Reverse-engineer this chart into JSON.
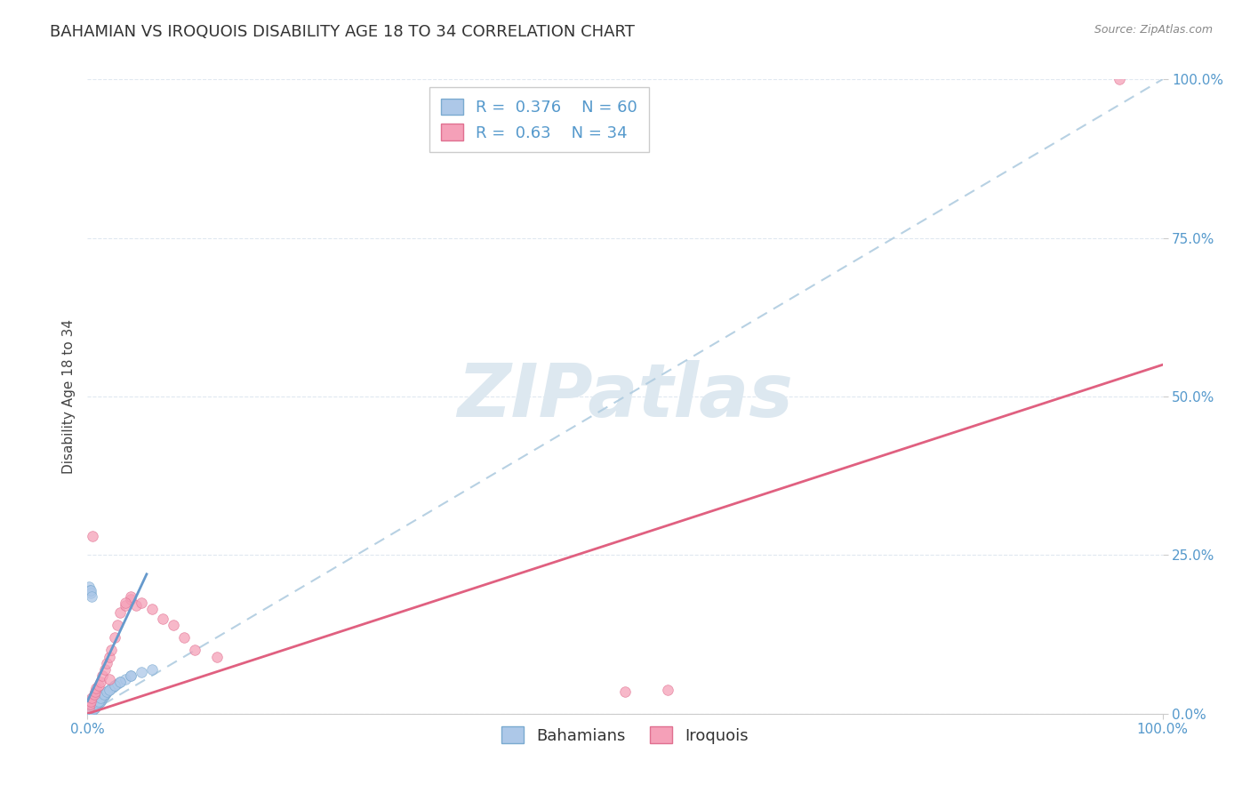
{
  "title": "BAHAMIAN VS IROQUOIS DISABILITY AGE 18 TO 34 CORRELATION CHART",
  "source": "Source: ZipAtlas.com",
  "ylabel": "Disability Age 18 to 34",
  "xlim": [
    0.0,
    1.0
  ],
  "ylim": [
    0.0,
    1.0
  ],
  "bahamian_R": 0.376,
  "bahamian_N": 60,
  "iroquois_R": 0.63,
  "iroquois_N": 34,
  "bahamian_color": "#adc8e8",
  "iroquois_color": "#f5a0b8",
  "bahamian_edge_color": "#7aaad0",
  "iroquois_edge_color": "#e07090",
  "bahamian_line_color": "#6699cc",
  "iroquois_line_color": "#e06080",
  "dashed_line_color": "#b0cce0",
  "background_color": "#ffffff",
  "grid_color": "#e0e8f0",
  "tick_color": "#5599cc",
  "title_color": "#333333",
  "source_color": "#888888",
  "ylabel_color": "#444444",
  "watermark_color": "#dde8f0",
  "title_fontsize": 13,
  "source_fontsize": 9,
  "axis_label_fontsize": 11,
  "tick_fontsize": 11,
  "legend_fontsize": 13,
  "watermark_fontsize": 60,
  "scatter_size": 70,
  "dashed_slope": 1.0,
  "dashed_intercept": 0.0,
  "iroquois_line_slope": 0.55,
  "iroquois_line_intercept": 0.0,
  "bahamian_short_line": {
    "x0": 0.0,
    "y0": 0.02,
    "x1": 0.055,
    "y1": 0.22
  },
  "bahamian_points": {
    "x": [
      0.001,
      0.001,
      0.001,
      0.002,
      0.002,
      0.002,
      0.003,
      0.003,
      0.003,
      0.004,
      0.004,
      0.004,
      0.005,
      0.005,
      0.005,
      0.006,
      0.006,
      0.007,
      0.007,
      0.008,
      0.008,
      0.009,
      0.01,
      0.01,
      0.011,
      0.012,
      0.013,
      0.014,
      0.015,
      0.016,
      0.017,
      0.018,
      0.02,
      0.022,
      0.024,
      0.025,
      0.028,
      0.03,
      0.035,
      0.04,
      0.001,
      0.002,
      0.003,
      0.003,
      0.004,
      0.005,
      0.006,
      0.007,
      0.008,
      0.009,
      0.01,
      0.012,
      0.015,
      0.018,
      0.02,
      0.025,
      0.03,
      0.04,
      0.05,
      0.06
    ],
    "y": [
      0.005,
      0.01,
      0.015,
      0.008,
      0.012,
      0.02,
      0.006,
      0.01,
      0.018,
      0.007,
      0.014,
      0.022,
      0.008,
      0.016,
      0.024,
      0.009,
      0.018,
      0.01,
      0.02,
      0.012,
      0.022,
      0.014,
      0.016,
      0.028,
      0.018,
      0.02,
      0.022,
      0.025,
      0.028,
      0.03,
      0.032,
      0.035,
      0.038,
      0.04,
      0.042,
      0.045,
      0.048,
      0.05,
      0.055,
      0.06,
      0.2,
      0.195,
      0.19,
      0.195,
      0.185,
      0.005,
      0.008,
      0.012,
      0.015,
      0.018,
      0.02,
      0.025,
      0.03,
      0.035,
      0.038,
      0.045,
      0.05,
      0.06,
      0.065,
      0.07
    ]
  },
  "iroquois_points": {
    "x": [
      0.001,
      0.002,
      0.003,
      0.004,
      0.005,
      0.006,
      0.007,
      0.008,
      0.01,
      0.012,
      0.014,
      0.016,
      0.018,
      0.02,
      0.022,
      0.025,
      0.028,
      0.03,
      0.035,
      0.04,
      0.045,
      0.05,
      0.06,
      0.07,
      0.08,
      0.09,
      0.1,
      0.12,
      0.5,
      0.54,
      0.04,
      0.035,
      0.96,
      0.02
    ],
    "y": [
      0.01,
      0.015,
      0.02,
      0.025,
      0.28,
      0.03,
      0.035,
      0.04,
      0.045,
      0.05,
      0.06,
      0.07,
      0.08,
      0.09,
      0.1,
      0.12,
      0.14,
      0.16,
      0.17,
      0.18,
      0.17,
      0.175,
      0.165,
      0.15,
      0.14,
      0.12,
      0.1,
      0.09,
      0.035,
      0.038,
      0.185,
      0.175,
      1.0,
      0.055
    ]
  }
}
